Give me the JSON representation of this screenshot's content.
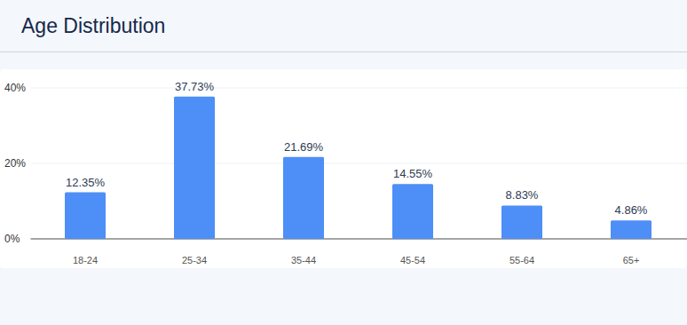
{
  "chart_data": {
    "type": "bar",
    "title": "Age Distribution",
    "categories": [
      "18-24",
      "25-34",
      "35-44",
      "45-54",
      "55-64",
      "65+"
    ],
    "values": [
      12.35,
      37.73,
      21.69,
      14.55,
      8.83,
      4.86
    ],
    "value_labels": [
      "12.35%",
      "37.73%",
      "21.69%",
      "14.55%",
      "8.83%",
      "4.86%"
    ],
    "color": "#4e8ef7",
    "ylim": [
      0,
      40
    ],
    "yticks": [
      {
        "value": 0,
        "label": "0%"
      },
      {
        "value": 20,
        "label": "20%"
      },
      {
        "value": 40,
        "label": "40%"
      }
    ],
    "grid": true,
    "data_labels": true
  }
}
